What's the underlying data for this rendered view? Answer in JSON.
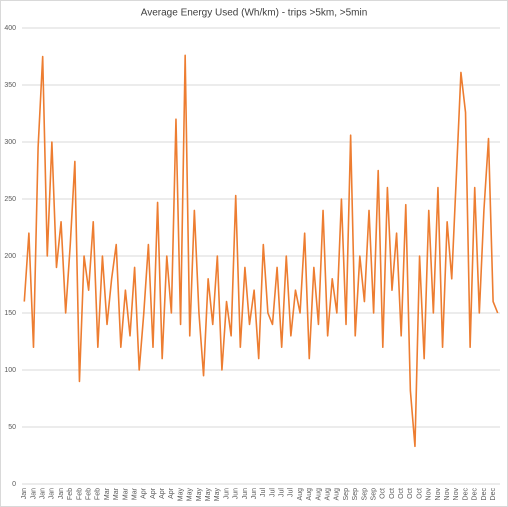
{
  "chart_data": {
    "type": "line",
    "title": "Average Energy Used (Wh/km) - trips >5km, >5min",
    "categories": [
      "Jan",
      null,
      "Jan",
      null,
      "Jan",
      null,
      "Jan",
      null,
      "Jan",
      null,
      "Feb",
      null,
      "Feb",
      null,
      "Feb",
      null,
      "Feb",
      null,
      "Mar",
      null,
      "Mar",
      null,
      "Mar",
      null,
      "Mar",
      null,
      "Apr",
      null,
      "Apr",
      null,
      "Apr",
      null,
      "Apr",
      null,
      "May",
      null,
      "May",
      null,
      "May",
      null,
      "May",
      null,
      "May",
      null,
      "Jun",
      null,
      "Jun",
      null,
      "Jun",
      null,
      "Jun",
      null,
      "Jul",
      null,
      "Jul",
      null,
      "Jul",
      null,
      "Jul",
      null,
      "Aug",
      null,
      "Aug",
      null,
      "Aug",
      null,
      "Aug",
      null,
      "Aug",
      null,
      "Sep",
      null,
      "Sep",
      null,
      "Sep",
      null,
      "Sep",
      null,
      "Oct",
      null,
      "Oct",
      null,
      "Oct",
      null,
      "Oct",
      null,
      "Oct",
      null,
      "Nov",
      null,
      "Nov",
      null,
      "Nov",
      null,
      "Nov",
      null,
      "Dec",
      null,
      "Dec",
      null,
      "Dec",
      null,
      "Dec",
      null
    ],
    "values": [
      160,
      220,
      120,
      295,
      375,
      200,
      300,
      190,
      230,
      150,
      210,
      283,
      90,
      200,
      170,
      230,
      120,
      200,
      140,
      180,
      210,
      120,
      170,
      130,
      190,
      100,
      150,
      210,
      120,
      247,
      110,
      200,
      150,
      320,
      140,
      376,
      130,
      240,
      150,
      95,
      180,
      140,
      200,
      100,
      160,
      130,
      253,
      120,
      190,
      140,
      170,
      110,
      210,
      150,
      140,
      190,
      120,
      200,
      130,
      170,
      150,
      220,
      110,
      190,
      140,
      240,
      130,
      180,
      150,
      250,
      140,
      306,
      130,
      200,
      160,
      240,
      150,
      275,
      120,
      260,
      170,
      220,
      130,
      245,
      82,
      33,
      200,
      110,
      240,
      150,
      260,
      120,
      230,
      180,
      270,
      361,
      326,
      120,
      260,
      150,
      240,
      303,
      160,
      150
    ],
    "color": "#ed7d31",
    "ylim": [
      0,
      400
    ],
    "yticks": [
      0,
      50,
      100,
      150,
      200,
      250,
      300,
      350,
      400
    ],
    "grid": true
  }
}
